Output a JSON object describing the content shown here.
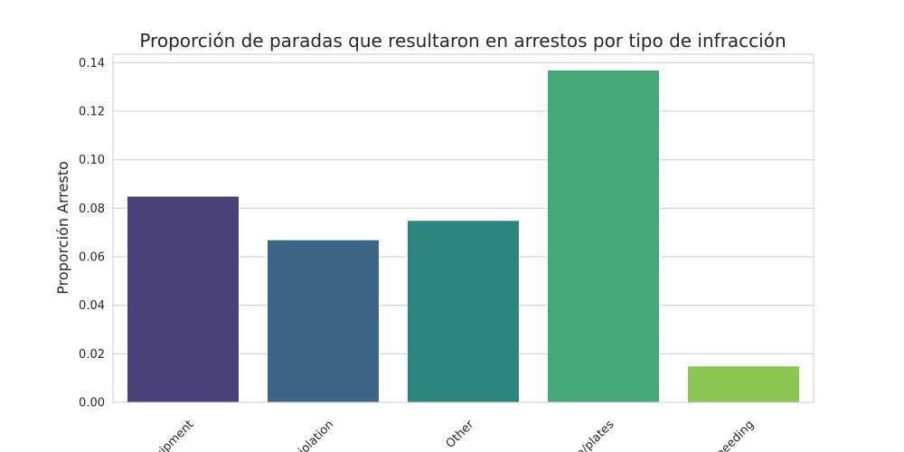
{
  "chart_data": {
    "type": "bar",
    "title": "Proporción de paradas que resultaron en arrestos por tipo de infracción",
    "xlabel": "",
    "ylabel": "Proporción Arresto",
    "categories": [
      "uipment",
      "violation",
      "Other",
      "n/plates",
      "Speeding"
    ],
    "values": [
      0.085,
      0.067,
      0.075,
      0.137,
      0.015
    ],
    "ylim": [
      0,
      0.1435
    ],
    "yticks": [
      "0.00",
      "0.02",
      "0.04",
      "0.06",
      "0.08",
      "0.10",
      "0.12",
      "0.14"
    ],
    "colors": [
      "#4a4178",
      "#3e6583",
      "#2e8580",
      "#46a978",
      "#8ec655"
    ],
    "grid": true,
    "legend": "none"
  }
}
